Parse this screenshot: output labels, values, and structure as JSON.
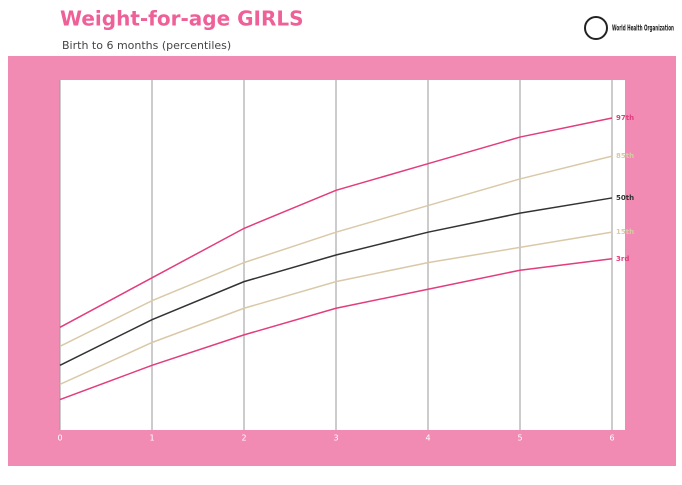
{
  "chart_data": {
    "type": "line",
    "title": "Weight-for-age GIRLS",
    "subtitle": "Birth to 6 months (percentiles)",
    "organization": "World Health Organization",
    "x": [
      0,
      1,
      2,
      3,
      4,
      5,
      6
    ],
    "xlim": [
      0,
      6
    ],
    "xticks": [
      0,
      1,
      2,
      3,
      4,
      5,
      6
    ],
    "ylim": [
      1.5,
      10.7
    ],
    "series": [
      {
        "name": "97th",
        "color": "#e23d7e",
        "values": [
          4.2,
          5.5,
          6.8,
          7.8,
          8.5,
          9.2,
          9.7
        ]
      },
      {
        "name": "85th",
        "color": "#d9c9a8",
        "values": [
          3.7,
          4.9,
          5.9,
          6.7,
          7.4,
          8.1,
          8.7
        ]
      },
      {
        "name": "50th",
        "color": "#333333",
        "values": [
          3.2,
          4.4,
          5.4,
          6.1,
          6.7,
          7.2,
          7.6
        ]
      },
      {
        "name": "15th",
        "color": "#d9c9a8",
        "values": [
          2.7,
          3.8,
          4.7,
          5.4,
          5.9,
          6.3,
          6.7
        ]
      },
      {
        "name": "3rd",
        "color": "#e23d7e",
        "values": [
          2.3,
          3.2,
          4.0,
          4.7,
          5.2,
          5.7,
          6.0
        ]
      }
    ]
  }
}
